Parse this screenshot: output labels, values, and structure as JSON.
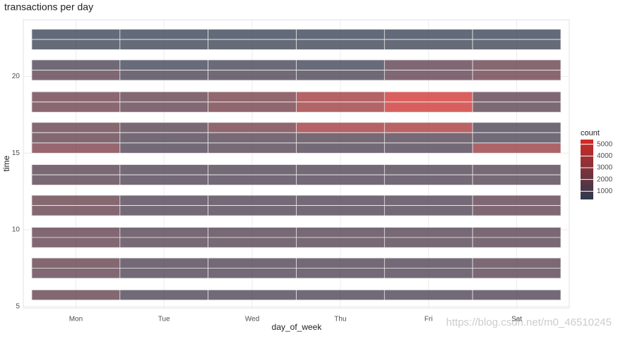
{
  "chart_data": {
    "type": "heatmap",
    "title": "transactions per day",
    "x_label": "day_of_week",
    "y_label": "time",
    "legend_title": "count",
    "categories": [
      "Mon",
      "Tue",
      "Wed",
      "Thu",
      "Fri",
      "Sat"
    ],
    "y": [
      22.75,
      22.08,
      20.75,
      20.08,
      18.67,
      18,
      16.67,
      16,
      15.33,
      13.92,
      13.25,
      11.92,
      11.25,
      9.83,
      9.17,
      7.83,
      7.17,
      5.75
    ],
    "values": [
      [
        400,
        400,
        400,
        400,
        400,
        400
      ],
      [
        500,
        500,
        500,
        500,
        500,
        500
      ],
      [
        900,
        600,
        700,
        600,
        1500,
        1800
      ],
      [
        1500,
        900,
        1000,
        900,
        1600,
        2000
      ],
      [
        2000,
        1700,
        2300,
        3700,
        5200,
        1500
      ],
      [
        2000,
        1600,
        2200,
        3600,
        5100,
        1400
      ],
      [
        1800,
        1300,
        2200,
        3700,
        3900,
        900
      ],
      [
        1700,
        1100,
        1200,
        1200,
        1200,
        1000
      ],
      [
        2500,
        1100,
        1200,
        1100,
        1100,
        3400
      ],
      [
        1300,
        1100,
        1100,
        1100,
        1100,
        1200
      ],
      [
        1300,
        1100,
        1100,
        1100,
        1100,
        1200
      ],
      [
        1800,
        1100,
        1100,
        1100,
        1100,
        1500
      ],
      [
        1700,
        1100,
        1100,
        1100,
        1100,
        1500
      ],
      [
        1600,
        1200,
        1200,
        1200,
        1200,
        1300
      ],
      [
        1600,
        1200,
        1200,
        1200,
        1200,
        1300
      ],
      [
        1700,
        1100,
        1100,
        1100,
        1100,
        1400
      ],
      [
        1600,
        1100,
        1100,
        1100,
        1100,
        1300
      ],
      [
        1700,
        1000,
        1000,
        1000,
        1000,
        1100
      ]
    ],
    "ylim": [
      4.9,
      23.7
    ],
    "yticks": [
      5,
      10,
      15,
      20
    ],
    "grid": true,
    "color_low": "#2c3a4e",
    "color_high": "#d42a26",
    "clim": [
      300,
      5400
    ],
    "cticks": [
      1000,
      2000,
      3000,
      4000,
      5000
    ]
  },
  "watermark": "https://blog.csdn.net/m0_46510245"
}
